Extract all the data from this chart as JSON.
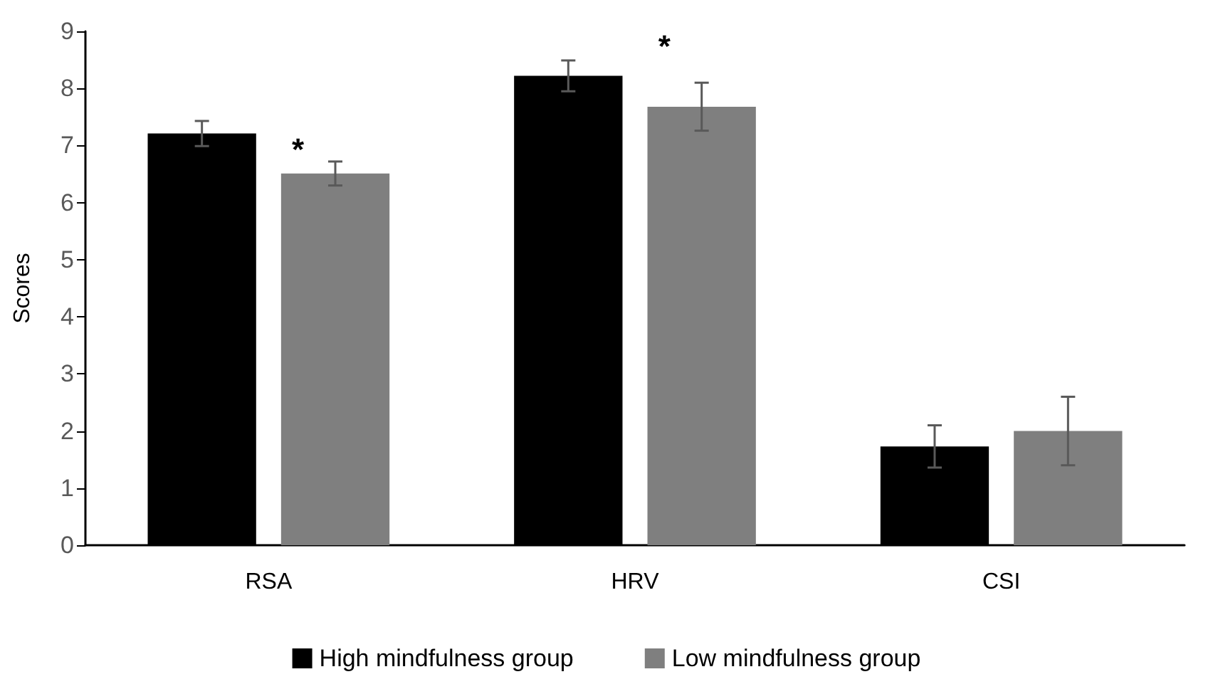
{
  "chart_data": {
    "type": "bar",
    "ylabel": "Scores",
    "categories": [
      "RSA",
      "HRV",
      "CSI"
    ],
    "series": [
      {
        "name": "High mindfulness group",
        "color": "#000000",
        "values": [
          7.21,
          8.22,
          1.73
        ],
        "errors": [
          0.22,
          0.27,
          0.37
        ]
      },
      {
        "name": "Low mindfulness group",
        "color": "#7f7f7f",
        "values": [
          6.51,
          7.68,
          2.0
        ],
        "errors": [
          0.21,
          0.42,
          0.6
        ]
      }
    ],
    "ylim": [
      0,
      9
    ],
    "yticks": [
      0,
      1,
      2,
      3,
      4,
      5,
      6,
      7,
      8,
      9
    ],
    "grid": false,
    "legend": "bottom",
    "annotations": [
      "*",
      "*"
    ]
  }
}
